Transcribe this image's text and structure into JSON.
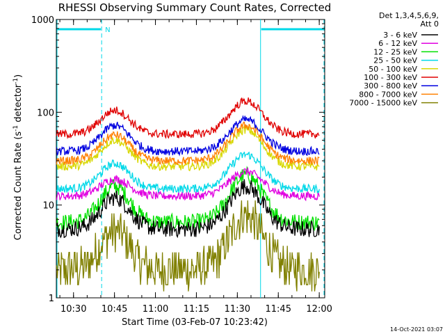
{
  "chart_data": {
    "type": "line",
    "title": "RHESSI Observing Summary Count Rates, Corrected",
    "ylabel_main": "Corrected Count Rate (s",
    "ylabel_sup1": "-1",
    "ylabel_mid": " detector",
    "ylabel_sup2": "-1",
    "ylabel_end": ")",
    "xlabel": "Start Time (03-Feb-07 10:23:42)",
    "footer": "14-Oct-2021 03:07",
    "ylog": true,
    "ylim": [
      1,
      1000
    ],
    "xlim_minutes": [
      0,
      98.3
    ],
    "y_ticks": [
      {
        "value": 1,
        "label": "1"
      },
      {
        "value": 10,
        "label": "10"
      },
      {
        "value": 100,
        "label": "100"
      },
      {
        "value": 1000,
        "label": "1000"
      }
    ],
    "x_ticks": [
      {
        "minute": 6.3,
        "label": "10:30"
      },
      {
        "minute": 21.3,
        "label": "10:45"
      },
      {
        "minute": 36.3,
        "label": "11:00"
      },
      {
        "minute": 51.3,
        "label": "11:15"
      },
      {
        "minute": 66.3,
        "label": "11:30"
      },
      {
        "minute": 81.3,
        "label": "11:45"
      },
      {
        "minute": 96.3,
        "label": "12:00"
      }
    ],
    "legend": {
      "header1": "Det 1,3,4,5,6,9,",
      "header2": "Att 0",
      "position": "right"
    },
    "series": [
      {
        "name": "3 - 6 keV",
        "color": "#000000",
        "base": 5.5,
        "peak1": 12,
        "peak2": 16
      },
      {
        "name": "6 - 12 keV",
        "color": "#e000e0",
        "base": 12.5,
        "peak1": 19,
        "peak2": 23
      },
      {
        "name": "12 - 25 keV",
        "color": "#00e000",
        "base": 6.5,
        "peak1": 16,
        "peak2": 21
      },
      {
        "name": "25 - 50 keV",
        "color": "#00d8e8",
        "base": 15,
        "peak1": 28,
        "peak2": 35
      },
      {
        "name": "50 - 100 keV",
        "color": "#d8d800",
        "base": 26,
        "peak1": 50,
        "peak2": 65
      },
      {
        "name": "100 - 300 keV",
        "color": "#e00000",
        "base": 58,
        "peak1": 105,
        "peak2": 132
      },
      {
        "name": "300 - 800 keV",
        "color": "#0000e0",
        "base": 38,
        "peak1": 72,
        "peak2": 83
      },
      {
        "name": "800 - 7000 keV",
        "color": "#ff8000",
        "base": 30,
        "peak1": 57,
        "peak2": 72
      },
      {
        "name": "7000 - 15000 keV",
        "color": "#808000",
        "base": 2.0,
        "peak1": 5.3,
        "peak2": 7.8
      }
    ],
    "annotations": {
      "night_label": "N",
      "saa_or_night_intervals_minutes": [
        [
          0,
          16.6
        ],
        [
          74.8,
          98.3
        ]
      ],
      "marker_color": "#00d8e8"
    }
  }
}
